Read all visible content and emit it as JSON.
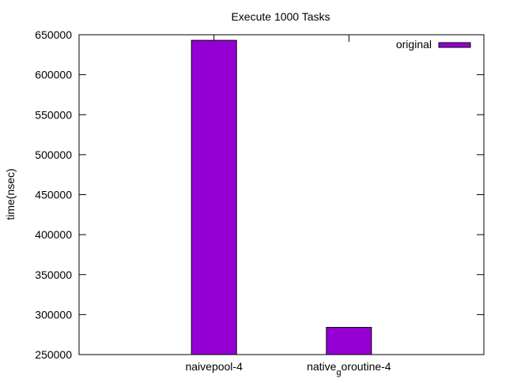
{
  "chart_data": {
    "type": "bar",
    "title": "Execute 1000 Tasks",
    "ylabel": "time(nsec)",
    "xlabel": "",
    "ylim": [
      250000,
      650000
    ],
    "yticks": [
      250000,
      300000,
      350000,
      400000,
      450000,
      500000,
      550000,
      600000,
      650000
    ],
    "categories": [
      {
        "base": "naivepool-4",
        "sub": "",
        "rest": ""
      },
      {
        "base": "native",
        "sub": "g",
        "rest": "oroutine-4"
      }
    ],
    "series": [
      {
        "name": "original",
        "values": [
          643000,
          284000
        ]
      }
    ],
    "legend_position": "top-right",
    "grid": false,
    "bar_color": "#9400d3"
  }
}
